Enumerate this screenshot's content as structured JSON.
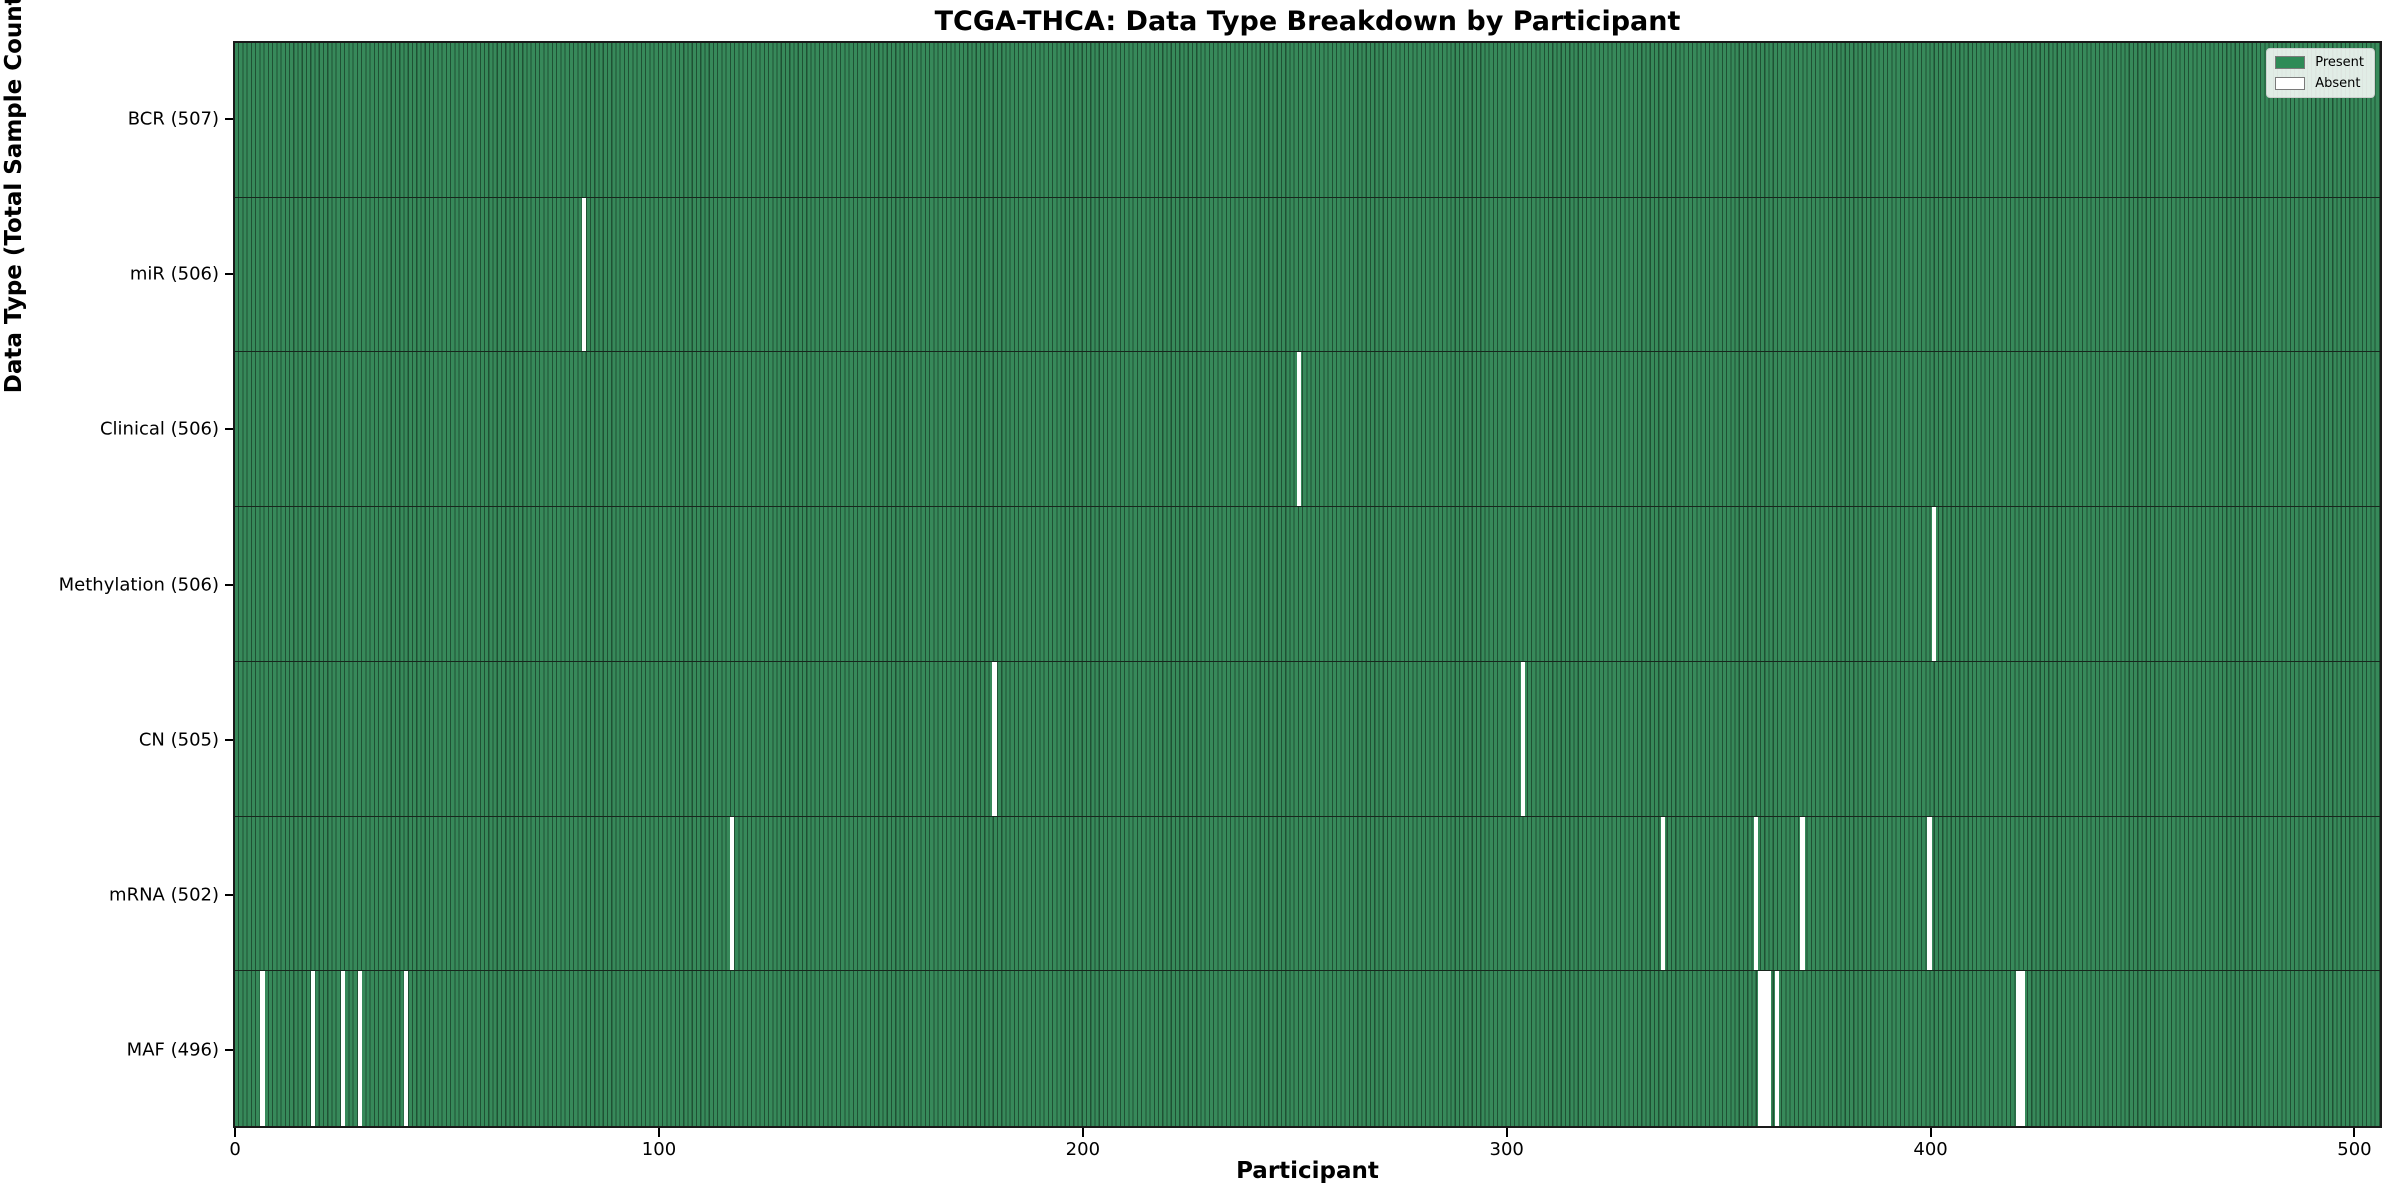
{
  "title": "TCGA-THCA: Data Type Breakdown by Participant",
  "x_axis_label": "Participant",
  "y_axis_label": "Data Type (Total Sample Count)",
  "legend": {
    "present_label": "Present",
    "absent_label": "Absent",
    "present_color": "#2e8b57",
    "absent_color": "#ffffff"
  },
  "colors": {
    "bar_fill": "#37895a",
    "bar_edge": "#1f5134",
    "row_divider": "#17271d",
    "plot_border": "#1a1a1a",
    "background": "#ffffff"
  },
  "chart_data": {
    "type": "heatmap",
    "title": "TCGA-THCA: Data Type Breakdown by Participant",
    "xlabel": "Participant",
    "ylabel": "Data Type (Total Sample Count)",
    "n_participants": 507,
    "x_ticks": [
      0,
      100,
      200,
      300,
      400,
      500
    ],
    "legend_position": "upper right",
    "value_encoding": {
      "present": "green bar",
      "absent": "white gap"
    },
    "rows": [
      {
        "label": "BCR (507)",
        "data_type": "BCR",
        "total_count": 507,
        "absent_participants": []
      },
      {
        "label": "miR (506)",
        "data_type": "miR",
        "total_count": 506,
        "absent_participants": [
          82
        ]
      },
      {
        "label": "Clinical (506)",
        "data_type": "Clinical",
        "total_count": 506,
        "absent_participants": [
          251
        ]
      },
      {
        "label": "Methylation (506)",
        "data_type": "Methylation",
        "total_count": 506,
        "absent_participants": [
          401
        ]
      },
      {
        "label": "CN (505)",
        "data_type": "CN",
        "total_count": 505,
        "absent_participants": [
          179,
          304
        ]
      },
      {
        "label": "mRNA (502)",
        "data_type": "mRNA",
        "total_count": 502,
        "absent_participants": [
          117,
          337,
          359,
          370,
          400
        ]
      },
      {
        "label": "MAF (496)",
        "data_type": "MAF",
        "total_count": 496,
        "absent_participants": [
          6,
          18,
          25,
          29,
          40,
          360,
          361,
          362,
          364,
          421,
          422
        ]
      }
    ]
  }
}
